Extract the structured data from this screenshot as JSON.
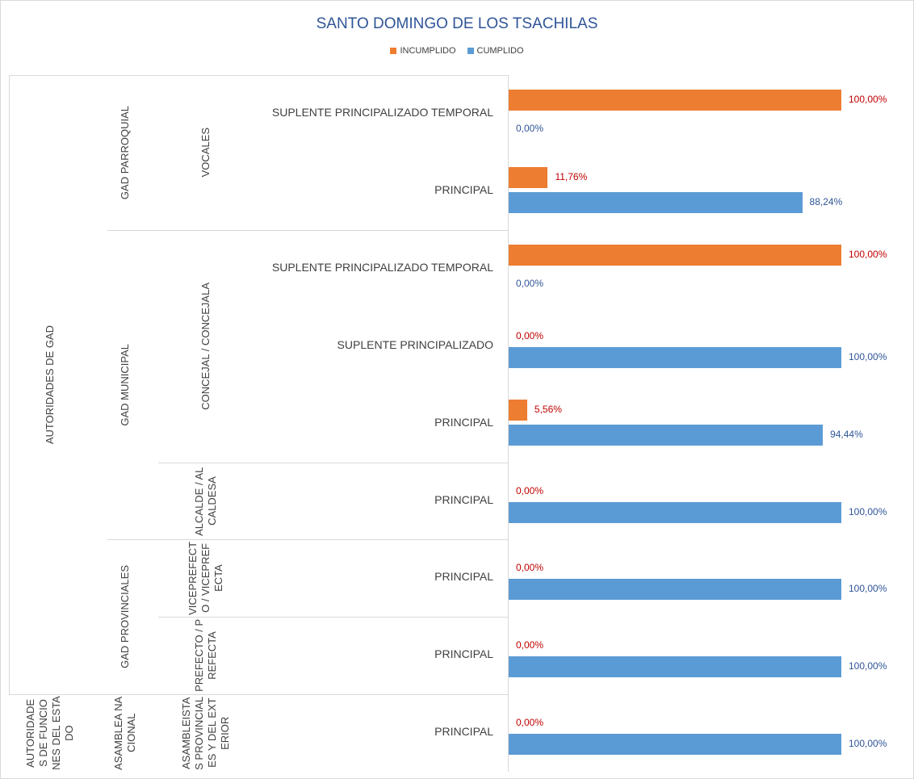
{
  "chart_data": {
    "type": "bar",
    "orientation": "horizontal",
    "title": "SANTO DOMINGO DE LOS TSACHILAS",
    "category_levels": [
      [
        "AUTORIDADES DE GAD",
        null,
        null,
        null,
        null,
        null,
        null,
        null,
        "AUTORIDADES DE FUNCIONES DEL ESTADO"
      ],
      [
        "GAD PARROQUIAL",
        null,
        "GAD MUNICIPAL",
        null,
        null,
        null,
        "GAD PROVINCIALES",
        null,
        "ASAMBLEA NACIONAL"
      ],
      [
        "VOCALES",
        null,
        "CONCEJAL / CONCEJALA",
        null,
        null,
        "ALCALDE / ALCALDESA",
        "VICEPREFECTO / VICEPREFECTA",
        "PREFECTO / PREFECTA",
        "ASAMBLEISTAS PROVINCIALES Y DEL EXTERIOR"
      ]
    ],
    "categories": [
      "SUPLENTE PRINCIPALIZADO TEMPORAL",
      "PRINCIPAL",
      "SUPLENTE PRINCIPALIZADO TEMPORAL",
      "SUPLENTE PRINCIPALIZADO",
      "PRINCIPAL",
      "PRINCIPAL",
      "PRINCIPAL",
      "PRINCIPAL",
      "PRINCIPAL"
    ],
    "xlim": [
      0,
      100
    ],
    "legend": "top",
    "series": [
      {
        "name": "INCUMPLIDO",
        "color": "#ed7d31",
        "label_color": "#c00000",
        "values": [
          100,
          11.76,
          100,
          0,
          5.56,
          0,
          0,
          0,
          0
        ],
        "value_labels": [
          "100,00%",
          "11,76%",
          "100,00%",
          "0,00%",
          "5,56%",
          "0,00%",
          "0,00%",
          "0,00%",
          "0,00%"
        ]
      },
      {
        "name": "CUMPLIDO",
        "color": "#5b9bd5",
        "label_color": "#2f5597",
        "values": [
          0,
          88.24,
          0,
          100,
          94.44,
          100,
          100,
          100,
          100
        ],
        "value_labels": [
          "0,00%",
          "88,24%",
          "0,00%",
          "100,00%",
          "94,44%",
          "100,00%",
          "100,00%",
          "100,00%",
          "100,00%"
        ]
      }
    ]
  }
}
